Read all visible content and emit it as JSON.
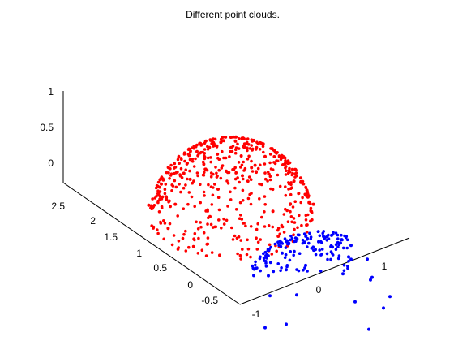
{
  "chart_data": {
    "type": "scatter3d",
    "title": "Different point clouds.",
    "xlabel": "",
    "ylabel": "",
    "zlabel": "",
    "grid": false,
    "legend": "none",
    "xlim": [
      -1,
      1.5
    ],
    "ylim": [
      -0.7,
      2.6
    ],
    "zlim": [
      -0.15,
      1.0
    ],
    "xticks": [
      "-1",
      "0",
      "1"
    ],
    "yticks": [
      "-0.5",
      "0",
      "0.5",
      "1",
      "1.5",
      "2",
      "2.5"
    ],
    "zticks": [
      "0",
      "0.5",
      "1"
    ],
    "series": [
      {
        "color": "#ff0000",
        "shape": "hemisphere",
        "center": [
          0,
          1.8,
          0
        ],
        "radius": 1,
        "z_range": [
          0.0,
          1.0
        ],
        "points": [
          [
            0.0,
            1.8,
            1.0
          ],
          [
            0.21,
            1.8,
            0.98
          ],
          [
            -0.21,
            1.8,
            0.98
          ],
          [
            0.0,
            2.01,
            0.98
          ],
          [
            0.0,
            1.59,
            0.98
          ],
          [
            0.3,
            2.1,
            0.91
          ],
          [
            -0.3,
            1.5,
            0.91
          ],
          [
            0.3,
            1.5,
            0.91
          ],
          [
            -0.3,
            2.1,
            0.91
          ],
          [
            0.42,
            1.8,
            0.91
          ],
          [
            -0.42,
            1.8,
            0.91
          ],
          [
            0.0,
            2.22,
            0.91
          ],
          [
            0.0,
            1.38,
            0.91
          ],
          [
            0.5,
            2.2,
            0.77
          ],
          [
            -0.5,
            1.4,
            0.77
          ],
          [
            0.5,
            1.4,
            0.77
          ],
          [
            -0.5,
            2.2,
            0.77
          ],
          [
            0.63,
            1.8,
            0.77
          ],
          [
            -0.63,
            1.8,
            0.77
          ],
          [
            0.0,
            2.43,
            0.77
          ],
          [
            0.0,
            1.17,
            0.77
          ],
          [
            0.7,
            2.3,
            0.5
          ],
          [
            -0.7,
            1.3,
            0.5
          ],
          [
            0.7,
            1.3,
            0.5
          ],
          [
            -0.7,
            2.3,
            0.5
          ],
          [
            0.86,
            1.8,
            0.5
          ],
          [
            -0.86,
            1.8,
            0.5
          ],
          [
            0.0,
            2.66,
            0.5
          ],
          [
            0.0,
            0.94,
            0.5
          ],
          [
            0.82,
            2.4,
            0.2
          ],
          [
            -0.82,
            1.2,
            0.2
          ],
          [
            0.82,
            1.2,
            0.2
          ],
          [
            -0.82,
            2.4,
            0.2
          ],
          [
            0.97,
            1.8,
            0.2
          ],
          [
            -0.97,
            1.8,
            0.2
          ],
          [
            0.0,
            2.77,
            0.2
          ],
          [
            0.0,
            0.83,
            0.2
          ],
          [
            0.7,
            2.5,
            0.05
          ],
          [
            -0.7,
            1.1,
            0.05
          ],
          [
            0.7,
            1.1,
            0.05
          ]
        ]
      },
      {
        "color": "#0000ff",
        "shape": "hemisphere",
        "center": [
          0,
          0,
          0
        ],
        "radius": 1,
        "z_range": [
          -0.5,
          0.5
        ],
        "points": [
          [
            0.0,
            0.0,
            0.5
          ],
          [
            0.15,
            0.1,
            0.48
          ],
          [
            -0.15,
            -0.1,
            0.48
          ],
          [
            0.1,
            -0.15,
            0.46
          ],
          [
            -0.1,
            0.15,
            0.46
          ],
          [
            0.35,
            0.2,
            0.38
          ],
          [
            -0.35,
            -0.2,
            0.38
          ],
          [
            0.2,
            -0.35,
            0.38
          ],
          [
            -0.2,
            0.35,
            0.38
          ],
          [
            0.5,
            0.0,
            0.28
          ],
          [
            -0.5,
            0.0,
            0.28
          ],
          [
            0.0,
            0.5,
            0.28
          ],
          [
            0.0,
            -0.5,
            0.28
          ],
          [
            0.6,
            0.35,
            0.12
          ],
          [
            -0.6,
            -0.35,
            0.12
          ],
          [
            0.35,
            -0.6,
            0.12
          ],
          [
            -0.35,
            0.6,
            0.12
          ],
          [
            0.75,
            0.0,
            0.0
          ],
          [
            -0.75,
            0.0,
            0.0
          ],
          [
            0.0,
            0.75,
            0.0
          ],
          [
            0.0,
            -0.75,
            0.0
          ],
          [
            0.8,
            0.4,
            -0.2
          ],
          [
            -0.8,
            -0.4,
            -0.2
          ],
          [
            0.4,
            -0.8,
            -0.2
          ],
          [
            -0.4,
            0.8,
            -0.2
          ],
          [
            0.9,
            0.1,
            -0.35
          ],
          [
            -0.9,
            -0.1,
            -0.35
          ],
          [
            0.1,
            -0.9,
            -0.35
          ],
          [
            -0.1,
            0.9,
            -0.35
          ],
          [
            0.95,
            -0.2,
            -0.5
          ]
        ]
      }
    ]
  }
}
